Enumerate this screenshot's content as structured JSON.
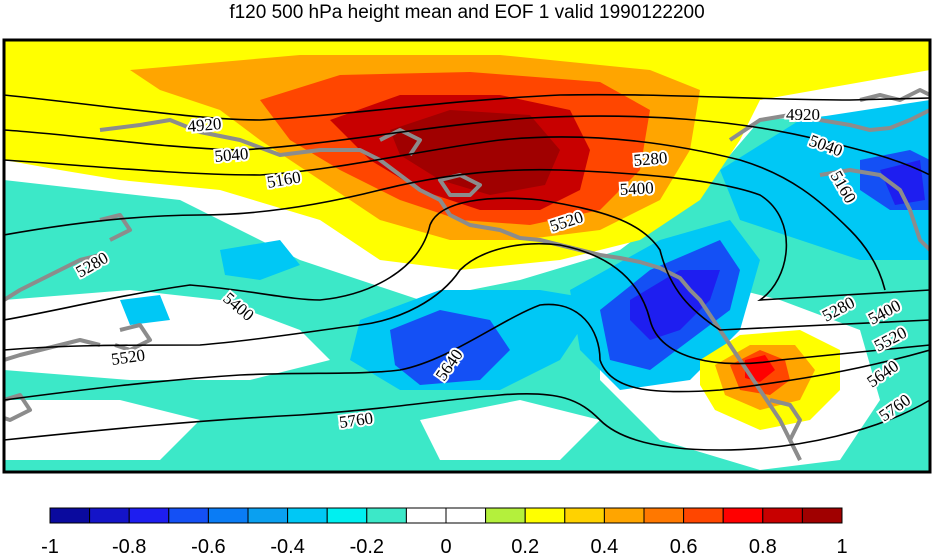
{
  "title": "f120 500 hPa height mean and EOF 1 valid 1990122200",
  "colorbar": {
    "colors": [
      "#0a0a9e",
      "#1414c8",
      "#1e1ef0",
      "#1450f5",
      "#0a7cf5",
      "#0aa0f0",
      "#00c8f5",
      "#00f0f0",
      "#3ce8c8",
      "#ffffff",
      "#ffffff",
      "#b4f03c",
      "#ffff00",
      "#ffd200",
      "#ffa500",
      "#ff7800",
      "#ff4600",
      "#ff0000",
      "#c80000",
      "#a00000"
    ],
    "tick_labels": [
      "-1",
      "-0.8",
      "-0.6",
      "-0.4",
      "-0.2",
      "0",
      "0.2",
      "0.4",
      "0.6",
      "0.8",
      "1"
    ]
  },
  "contour_labels": [
    {
      "text": "4920",
      "name": "contour-label-4920-west"
    },
    {
      "text": "5040",
      "name": "contour-label-5040-west"
    },
    {
      "text": "5160",
      "name": "contour-label-5160-west"
    },
    {
      "text": "5280",
      "name": "contour-label-5280-west"
    },
    {
      "text": "5400",
      "name": "contour-label-5400-west"
    },
    {
      "text": "5520",
      "name": "contour-label-5520-west"
    },
    {
      "text": "5640",
      "name": "contour-label-5640"
    },
    {
      "text": "5760",
      "name": "contour-label-5760-west"
    },
    {
      "text": "5520",
      "name": "contour-label-5520-center"
    },
    {
      "text": "5400",
      "name": "contour-label-5400-center"
    },
    {
      "text": "5280",
      "name": "contour-label-5280-center"
    },
    {
      "text": "4920",
      "name": "contour-label-4920-east"
    },
    {
      "text": "5040",
      "name": "contour-label-5040-east"
    },
    {
      "text": "5160",
      "name": "contour-label-5160-east"
    },
    {
      "text": "5280",
      "name": "contour-label-5280-east"
    },
    {
      "text": "5400",
      "name": "contour-label-5400-east"
    },
    {
      "text": "5520",
      "name": "contour-label-5520-east"
    },
    {
      "text": "5640",
      "name": "contour-label-5640-east"
    },
    {
      "text": "5760",
      "name": "contour-label-5760-east"
    }
  ]
}
